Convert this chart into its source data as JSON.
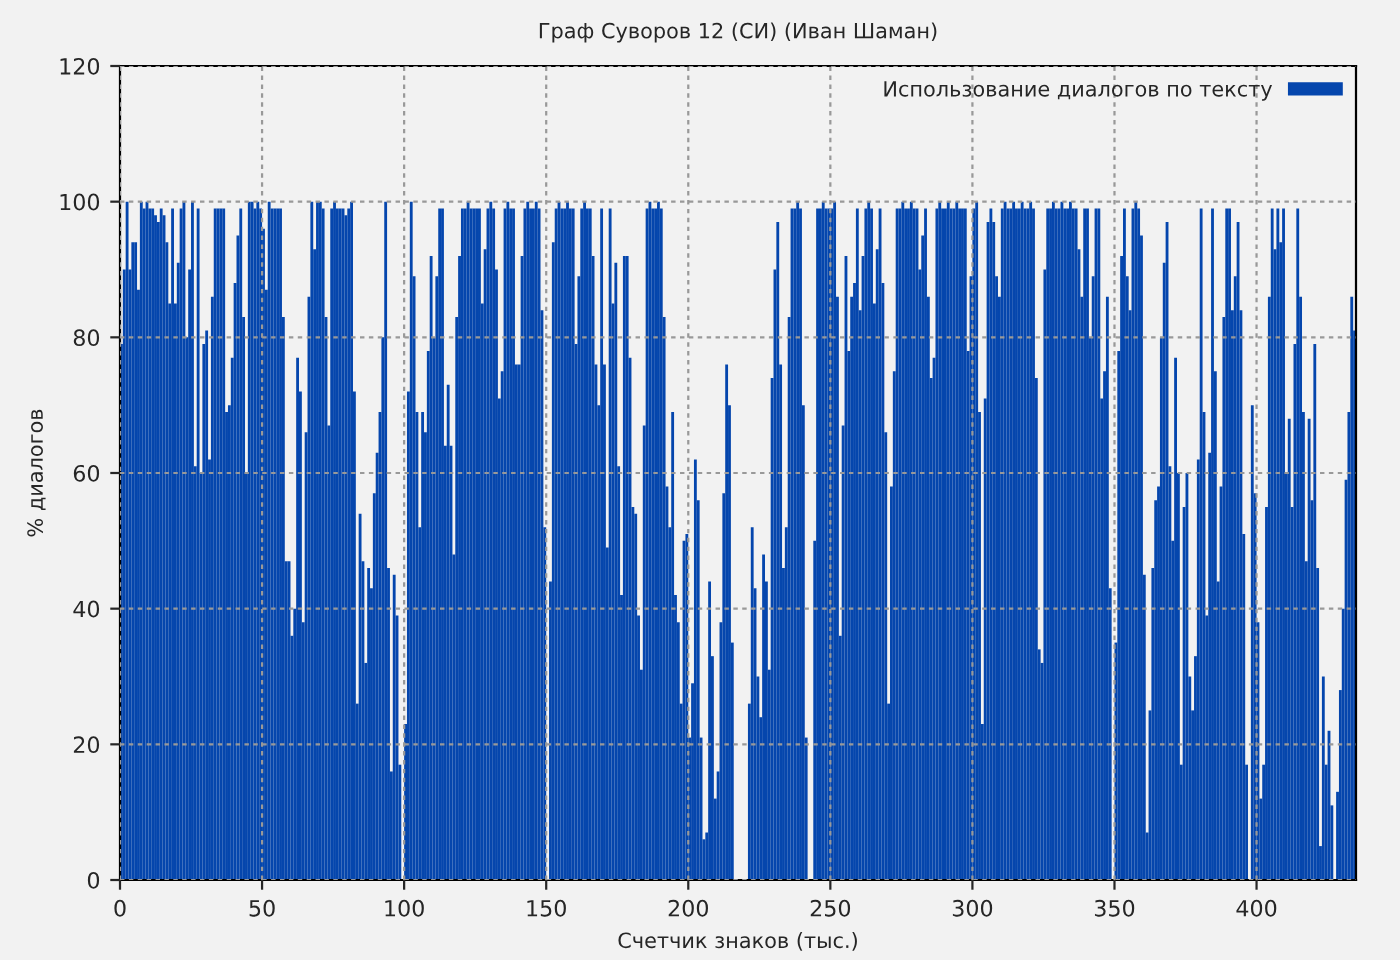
{
  "chart_data": {
    "type": "bar",
    "title": "Граф Суворов 12 (СИ) (Иван Шаман)",
    "xlabel": "Счетчик знаков (тыс.)",
    "ylabel": "% диалогов",
    "x": [
      0,
      1,
      2,
      3,
      4,
      5,
      6,
      7,
      8,
      9,
      10,
      11,
      12,
      13,
      14,
      15,
      16,
      17,
      18,
      19,
      20,
      21,
      22,
      23,
      24,
      25,
      26,
      27,
      28,
      29,
      30,
      31,
      32,
      33,
      34,
      35,
      36,
      37,
      38,
      39,
      40,
      41,
      42,
      43,
      44,
      45,
      46,
      47,
      48,
      49,
      50,
      51,
      52,
      53,
      54,
      55,
      56,
      57,
      58,
      59,
      60,
      61,
      62,
      63,
      64,
      65,
      66,
      67,
      68,
      69,
      70,
      71,
      72,
      73,
      74,
      75,
      76,
      77,
      78,
      79,
      80,
      81,
      82,
      83,
      84,
      85,
      86,
      87,
      88,
      89,
      90,
      91,
      92,
      93,
      94,
      95,
      96,
      97,
      98,
      99,
      100,
      101,
      102,
      103,
      104,
      105,
      106,
      107,
      108,
      109,
      110,
      111,
      112,
      113,
      114,
      115,
      116,
      117,
      118,
      119,
      120,
      121,
      122,
      123,
      124,
      125,
      126,
      127,
      128,
      129,
      130,
      131,
      132,
      133,
      134,
      135,
      136,
      137,
      138,
      139,
      140,
      141,
      142,
      143,
      144,
      145,
      146,
      147,
      148,
      149,
      150,
      151,
      152,
      153,
      154,
      155,
      156,
      157,
      158,
      159,
      160,
      161,
      162,
      163,
      164,
      165,
      166,
      167,
      168,
      169,
      170,
      171,
      172,
      173,
      174,
      175,
      176,
      177,
      178,
      179,
      180,
      181,
      182,
      183,
      184,
      185,
      186,
      187,
      188,
      189,
      190,
      191,
      192,
      193,
      194,
      195,
      196,
      197,
      198,
      199,
      200,
      201,
      202,
      203,
      204,
      205,
      206,
      207,
      208,
      209,
      210,
      211,
      212,
      213,
      214,
      215,
      216,
      217,
      218,
      219,
      220,
      221,
      222,
      223,
      224,
      225,
      226,
      227,
      228,
      229,
      230,
      231,
      232,
      233,
      234,
      235,
      236,
      237,
      238,
      239,
      240,
      241,
      242,
      243,
      244,
      245,
      246,
      247,
      248,
      249,
      250,
      251,
      252,
      253,
      254,
      255,
      256,
      257,
      258,
      259,
      260,
      261,
      262,
      263,
      264,
      265,
      266,
      267,
      268,
      269,
      270,
      271,
      272,
      273,
      274,
      275,
      276,
      277,
      278,
      279,
      280,
      281,
      282,
      283,
      284,
      285,
      286,
      287,
      288,
      289,
      290,
      291,
      292,
      293,
      294,
      295,
      296,
      297,
      298,
      299,
      300,
      301,
      302,
      303,
      304,
      305,
      306,
      307,
      308,
      309,
      310,
      311,
      312,
      313,
      314,
      315,
      316,
      317,
      318,
      319,
      320,
      321,
      322,
      323,
      324,
      325,
      326,
      327,
      328,
      329,
      330,
      331,
      332,
      333,
      334,
      335,
      336,
      337,
      338,
      339,
      340,
      341,
      342,
      343,
      344,
      345,
      346,
      347,
      348,
      349,
      350,
      351,
      352,
      353,
      354,
      355,
      356,
      357,
      358,
      359,
      360,
      361,
      362,
      363,
      364,
      365,
      366,
      367,
      368,
      369,
      370,
      371,
      372,
      373,
      374,
      375,
      376,
      377,
      378,
      379,
      380,
      381,
      382,
      383,
      384,
      385,
      386,
      387,
      388,
      389,
      390,
      391,
      392,
      393,
      394,
      395,
      396,
      397,
      398,
      399,
      400,
      401,
      402,
      403,
      404,
      405,
      406,
      407,
      408,
      409,
      410,
      411,
      412,
      413,
      414,
      415,
      416,
      417,
      418,
      419,
      420,
      421,
      422,
      423,
      424,
      425,
      426,
      427,
      428,
      429,
      430,
      431,
      432,
      433,
      434
    ],
    "series": [
      {
        "name": "Использование диалогов по тексту",
        "color": "#0546ad",
        "values": [
          79,
          90,
          100,
          90,
          94,
          94,
          87,
          100,
          99,
          100,
          99,
          99,
          98,
          97,
          99,
          98,
          94,
          85,
          99,
          85,
          91,
          99,
          100,
          80,
          90,
          100,
          61,
          99,
          60,
          79,
          81,
          62,
          86,
          99,
          99,
          99,
          99,
          69,
          70,
          77,
          88,
          95,
          99,
          83,
          60,
          100,
          100,
          99,
          100,
          99,
          96,
          87,
          100,
          99,
          99,
          99,
          99,
          83,
          47,
          47,
          36,
          40,
          77,
          72,
          38,
          66,
          86,
          100,
          93,
          100,
          100,
          99,
          83,
          67,
          99,
          100,
          99,
          99,
          99,
          98,
          99,
          100,
          72,
          26,
          54,
          47,
          32,
          46,
          43,
          57,
          63,
          69,
          80,
          100,
          46,
          16,
          45,
          39,
          17,
          0,
          23,
          72,
          100,
          89,
          69,
          52,
          69,
          66,
          78,
          92,
          80,
          89,
          99,
          99,
          64,
          73,
          64,
          48,
          83,
          92,
          99,
          99,
          100,
          99,
          99,
          99,
          99,
          85,
          93,
          99,
          100,
          99,
          90,
          71,
          75,
          99,
          100,
          99,
          99,
          76,
          76,
          92,
          99,
          100,
          99,
          99,
          100,
          99,
          84,
          52,
          0,
          44,
          94,
          99,
          100,
          99,
          99,
          100,
          99,
          99,
          79,
          89,
          99,
          100,
          99,
          99,
          92,
          76,
          70,
          99,
          76,
          49,
          99,
          85,
          91,
          61,
          42,
          92,
          92,
          77,
          55,
          54,
          39,
          31,
          67,
          99,
          100,
          99,
          99,
          100,
          99,
          83,
          58,
          52,
          69,
          42,
          38,
          26,
          50,
          51,
          21,
          29,
          62,
          56,
          21,
          6,
          7,
          44,
          33,
          12,
          16,
          38,
          57,
          76,
          70,
          35,
          0,
          0,
          0,
          0,
          0,
          26,
          52,
          43,
          30,
          24,
          48,
          44,
          31,
          74,
          90,
          97,
          76,
          46,
          52,
          83,
          99,
          99,
          100,
          99,
          70,
          21,
          0,
          0,
          50,
          99,
          99,
          100,
          99,
          99,
          99,
          100,
          86,
          36,
          67,
          92,
          78,
          86,
          88,
          99,
          84,
          92,
          99,
          100,
          99,
          85,
          93,
          99,
          88,
          66,
          26,
          58,
          75,
          99,
          99,
          100,
          99,
          99,
          100,
          99,
          99,
          90,
          95,
          99,
          86,
          74,
          77,
          99,
          100,
          99,
          99,
          100,
          99,
          99,
          100,
          99,
          99,
          99,
          78,
          89,
          99,
          100,
          69,
          23,
          71,
          97,
          99,
          97,
          89,
          86,
          99,
          100,
          99,
          99,
          100,
          99,
          99,
          100,
          99,
          99,
          100,
          99,
          74,
          34,
          32,
          90,
          99,
          99,
          100,
          99,
          99,
          100,
          99,
          99,
          100,
          99,
          99,
          93,
          86,
          99,
          99,
          80,
          89,
          99,
          99,
          71,
          75,
          86,
          43,
          0,
          35,
          78,
          92,
          99,
          89,
          84,
          99,
          100,
          99,
          95,
          45,
          7,
          25,
          46,
          56,
          58,
          80,
          91,
          97,
          61,
          50,
          77,
          60,
          17,
          55,
          60,
          30,
          25,
          33,
          62,
          99,
          69,
          39,
          63,
          99,
          75,
          44,
          58,
          83,
          99,
          99,
          84,
          89,
          97,
          84,
          51,
          17,
          0,
          70,
          57,
          38,
          12,
          17,
          55,
          86,
          99,
          93,
          99,
          94,
          99,
          60,
          68,
          55,
          79,
          99,
          86,
          69,
          47,
          68,
          56,
          79,
          46,
          5,
          30,
          17,
          22,
          11,
          0,
          13,
          28,
          40,
          59,
          69,
          86,
          81
        ]
      }
    ],
    "xlim": [
      0,
      435
    ],
    "ylim": [
      0,
      120
    ],
    "xticks": [
      0,
      50,
      100,
      150,
      200,
      250,
      300,
      350,
      400
    ],
    "yticks": [
      0,
      20,
      40,
      60,
      80,
      100,
      120
    ],
    "grid": true,
    "legend": "top right"
  }
}
